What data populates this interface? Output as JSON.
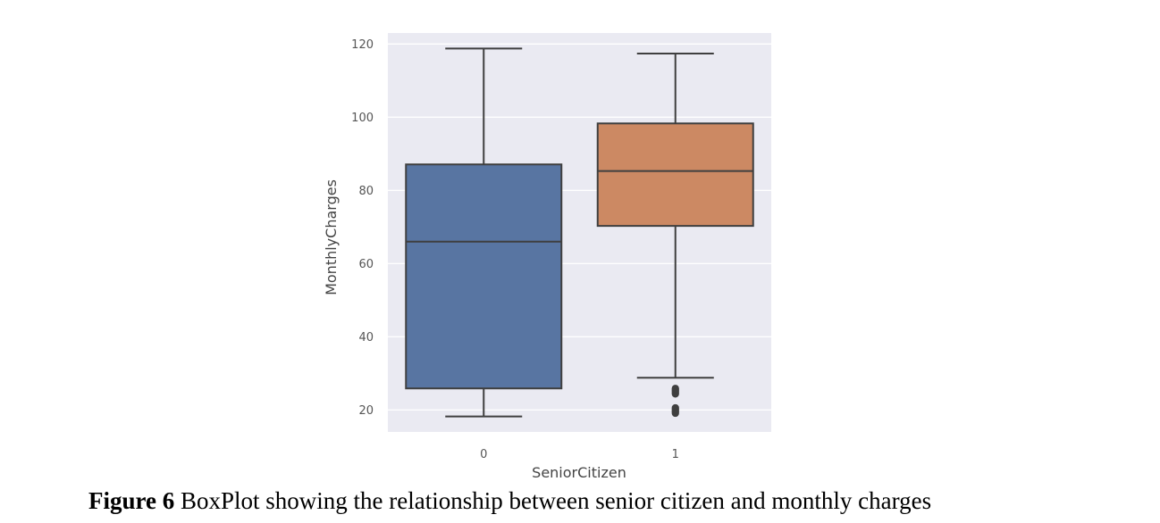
{
  "chart_data": {
    "type": "box",
    "title": "",
    "xlabel": "SeniorCitizen",
    "ylabel": "MonthlyCharges",
    "categories": [
      "0",
      "1"
    ],
    "ylim": [
      14,
      123
    ],
    "yticks": [
      20,
      40,
      60,
      80,
      100,
      120
    ],
    "grid": true,
    "boxes": [
      {
        "category": "0",
        "color": "#5875a2",
        "whisker_low": 18.25,
        "q1": 25.9,
        "median": 66.0,
        "q3": 87.1,
        "whisker_high": 118.75,
        "outliers": []
      },
      {
        "category": "1",
        "color": "#cc8963",
        "whisker_low": 28.8,
        "q1": 70.3,
        "median": 85.3,
        "q3": 98.3,
        "whisker_high": 117.4,
        "outliers": [
          19.1,
          19.4,
          19.7,
          20.0,
          20.3,
          20.6,
          24.4,
          24.7,
          25.0,
          25.3,
          25.6,
          25.9
        ]
      }
    ]
  },
  "caption": {
    "label": "Figure 6",
    "text": " BoxPlot showing the relationship between senior citizen and monthly charges"
  }
}
